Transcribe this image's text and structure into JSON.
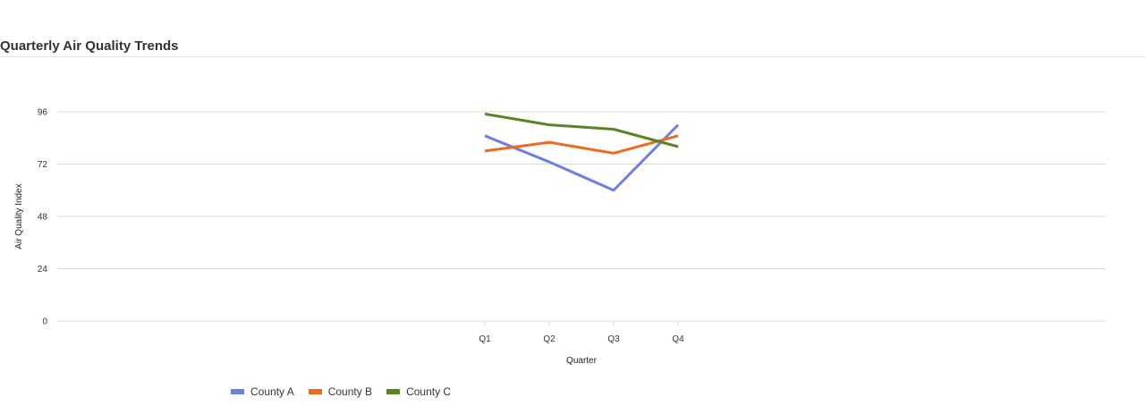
{
  "title": "Quarterly Air Quality Trends",
  "chart_data": {
    "type": "line",
    "title": "Quarterly Air Quality Trends",
    "xlabel": "Quarter",
    "ylabel": "Air Quality Index",
    "categories": [
      "Q1",
      "Q2",
      "Q3",
      "Q4"
    ],
    "yticks": [
      0,
      24,
      48,
      72,
      96
    ],
    "ylim": [
      0,
      96
    ],
    "grid": true,
    "legend_position": "bottom-left",
    "series": [
      {
        "name": "County A",
        "color": "#6b7fe3",
        "values": [
          85,
          73,
          60,
          90
        ]
      },
      {
        "name": "County B",
        "color": "#ef6a1c",
        "values": [
          78,
          82,
          77,
          85
        ]
      },
      {
        "name": "County C",
        "color": "#5a8424",
        "values": [
          95,
          90,
          88,
          80
        ]
      }
    ]
  }
}
